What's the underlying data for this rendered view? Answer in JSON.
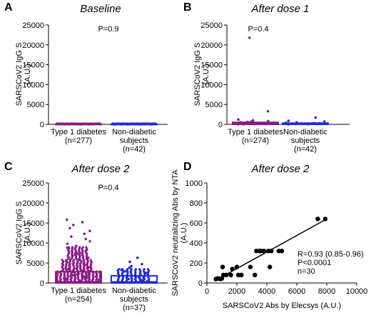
{
  "panels": [
    {
      "letter": "A",
      "title": "Baseline",
      "pvalue": "P=0.9"
    },
    {
      "letter": "B",
      "title": "After dose 1",
      "pvalue": "P=0.4"
    },
    {
      "letter": "C",
      "title": "After dose 2",
      "pvalue": "P=0.4"
    },
    {
      "letter": "D",
      "title": "After dose 2",
      "stats": [
        "R=0.93 (0.85-0.96)",
        "P<0.0001",
        "n=30"
      ]
    }
  ],
  "chart_data": [
    {
      "type": "scatter",
      "title": "Baseline",
      "ylabel": [
        "SARSCoV2 IgG S",
        "(A.U.)"
      ],
      "ylim": [
        0,
        25000
      ],
      "yticks": [
        0,
        5000,
        10000,
        15000,
        20000,
        25000
      ],
      "annotation": "P=0.9",
      "groups": [
        {
          "label": [
            "Type 1 diabetes",
            "(n=277)"
          ],
          "color": "#8b1a89",
          "mean": 25,
          "points": [
            0,
            5,
            10,
            15,
            20,
            25,
            30,
            35,
            40,
            45
          ]
        },
        {
          "label": [
            "Non-diabetic",
            "subjects",
            "(n=42)"
          ],
          "color": "#1f2bd6",
          "mean": 25,
          "points": [
            0,
            5,
            10,
            15,
            20,
            25,
            30,
            35,
            40
          ]
        }
      ]
    },
    {
      "type": "scatter",
      "title": "After dose 1",
      "ylabel": [
        "SARSCoV2 IgG S",
        "(A.U.)"
      ],
      "ylim": [
        0,
        25000
      ],
      "yticks": [
        0,
        5000,
        10000,
        15000,
        20000,
        25000
      ],
      "annotation": "P=0.4",
      "groups": [
        {
          "label": [
            "Type 1 diabetes",
            "(n=274)"
          ],
          "color": "#8b1a89",
          "mean": 500,
          "points": [
            21800,
            3300,
            1200,
            1000,
            800,
            700,
            600,
            500,
            450,
            400,
            350,
            300,
            250,
            200,
            150,
            100,
            80,
            60,
            40,
            20,
            10
          ]
        },
        {
          "label": [
            "Non-diabetic",
            "subjects",
            "(n=42)"
          ],
          "color": "#1f2bd6",
          "mean": 300,
          "points": [
            1700,
            900,
            700,
            500,
            400,
            300,
            250,
            200,
            150,
            100,
            50,
            20
          ]
        }
      ]
    },
    {
      "type": "scatter",
      "title": "After dose 2",
      "ylabel": [
        "SARSCoV2 IgG S",
        "(A.U.)"
      ],
      "ylim": [
        0,
        25000
      ],
      "yticks": [
        0,
        5000,
        10000,
        15000,
        20000,
        25000
      ],
      "annotation": "P=0.4",
      "groups": [
        {
          "label": [
            "Type 1 diabetes",
            "(n=254)"
          ],
          "color": "#8b1a89",
          "mean": 2800,
          "points": [
            15800,
            15200,
            14500,
            13700,
            13000,
            12300,
            11600,
            11000,
            10400,
            9800,
            9300,
            8800,
            8300,
            7800,
            7300,
            6800,
            6300,
            5900,
            5500,
            5100,
            4700,
            4300,
            3900,
            3500,
            3100,
            2800,
            2500,
            2200,
            1900,
            1600,
            1300,
            1000,
            700,
            400,
            150
          ]
        },
        {
          "label": [
            "Non-diabetic",
            "subjects",
            "(n=37)"
          ],
          "color": "#1f2bd6",
          "mean": 1800,
          "points": [
            6300,
            5300,
            4700,
            4200,
            3800,
            3300,
            2900,
            2500,
            2200,
            1900,
            1600,
            1300,
            1000,
            700,
            400,
            150
          ]
        }
      ]
    },
    {
      "type": "scatter",
      "title": "After dose 2",
      "xlabel": "SARSCoV2 Abs by Elecsys (A.U.)",
      "ylabel": [
        "SARSCoV2 neutralizing Abs by NTA",
        "(A.U.)"
      ],
      "xlim": [
        0,
        10000
      ],
      "ylim": [
        0,
        1000
      ],
      "xticks": [
        0,
        2000,
        4000,
        6000,
        8000,
        10000
      ],
      "yticks": [
        0,
        200,
        400,
        600,
        800,
        1000
      ],
      "annotation": [
        "R=0.93 (0.85-0.96)",
        "P<0.0001",
        "n=30"
      ],
      "points": [
        [
          600,
          40
        ],
        [
          700,
          45
        ],
        [
          800,
          45
        ],
        [
          900,
          40
        ],
        [
          1000,
          45
        ],
        [
          1050,
          160
        ],
        [
          1100,
          80
        ],
        [
          1300,
          80
        ],
        [
          1600,
          80
        ],
        [
          1700,
          140
        ],
        [
          2000,
          160
        ],
        [
          2100,
          80
        ],
        [
          2300,
          80
        ],
        [
          2900,
          160
        ],
        [
          3200,
          80
        ],
        [
          3300,
          320
        ],
        [
          3500,
          320
        ],
        [
          3600,
          320
        ],
        [
          3800,
          320
        ],
        [
          4100,
          320
        ],
        [
          4200,
          160
        ],
        [
          4300,
          320
        ],
        [
          4800,
          320
        ],
        [
          5000,
          320
        ],
        [
          7400,
          640
        ],
        [
          7900,
          640
        ]
      ],
      "fit": [
        [
          500,
          20
        ],
        [
          8000,
          640
        ]
      ]
    }
  ]
}
